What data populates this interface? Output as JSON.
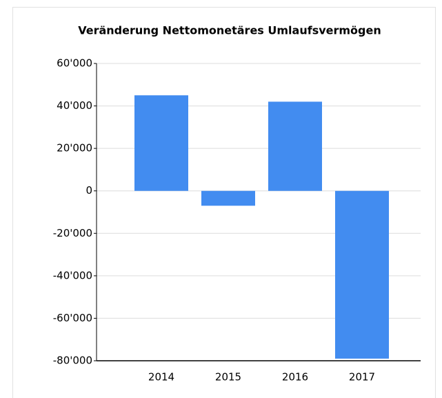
{
  "chart_data": {
    "type": "bar",
    "title": "Veränderung Nettomonetäres Umlaufsvermögen",
    "categories": [
      "2014",
      "2015",
      "2016",
      "2017"
    ],
    "values": [
      45000,
      -7000,
      42000,
      -79000
    ],
    "color": "#428cf0",
    "ylim": [
      -80000,
      60000
    ],
    "yticks": [
      {
        "value": -80000,
        "label": "-80'000"
      },
      {
        "value": -60000,
        "label": "-60'000"
      },
      {
        "value": -40000,
        "label": "-40'000"
      },
      {
        "value": -20000,
        "label": "-20'000"
      },
      0,
      {
        "value": 20000,
        "label": "20'000"
      },
      {
        "value": 40000,
        "label": "40'000"
      },
      {
        "value": 60000,
        "label": "60'000"
      }
    ],
    "grid": true
  }
}
